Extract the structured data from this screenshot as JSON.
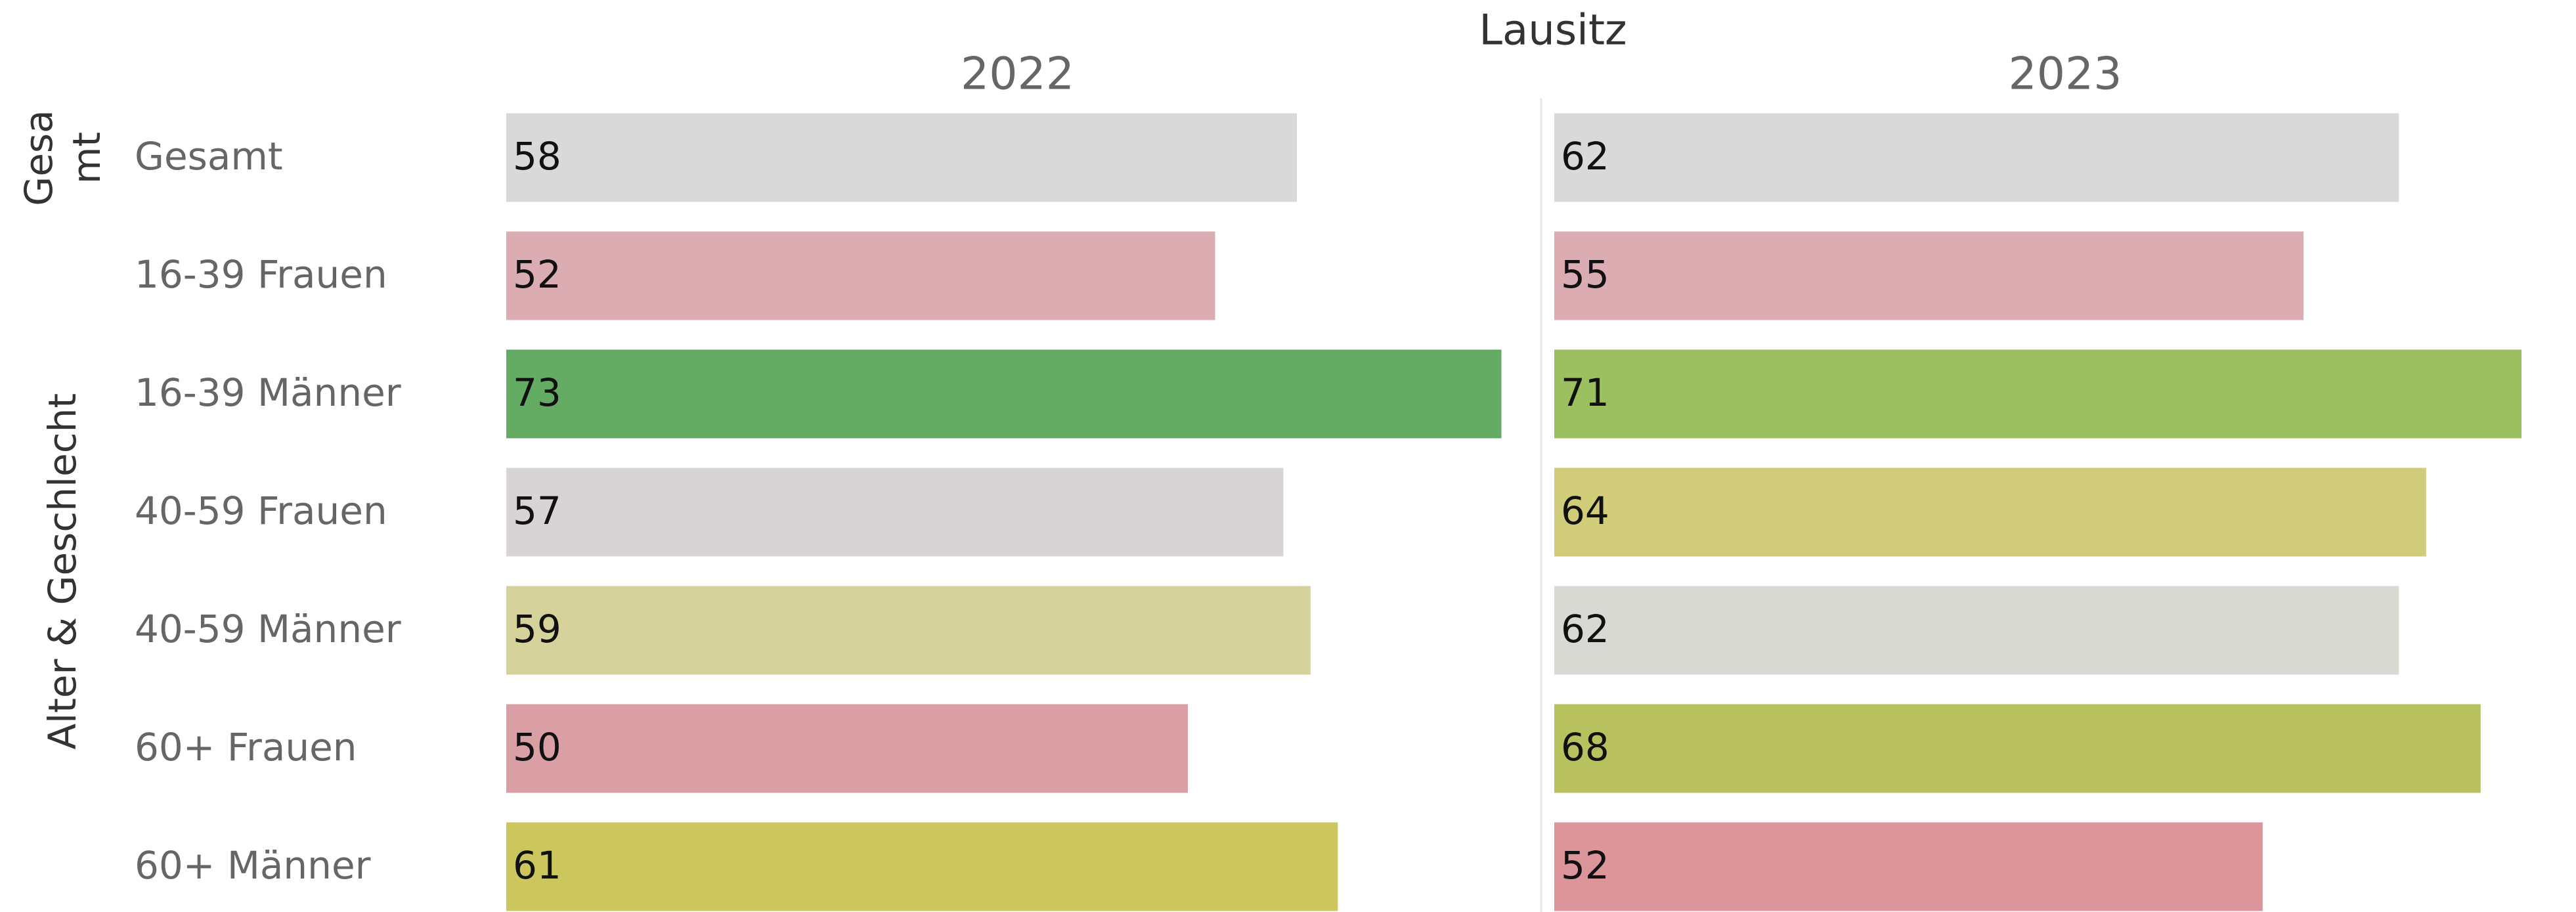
{
  "chart_data": {
    "type": "bar",
    "title": "Lausitz",
    "row_groups": [
      {
        "label": "Gesamt",
        "categories": [
          "Gesamt"
        ]
      },
      {
        "label": "Alter & Geschlecht",
        "categories": [
          "16-39 Frauen",
          "16-39 Männer",
          "40-59 Frauen",
          "40-59 Männer",
          "60+ Frauen",
          "60+ Männer"
        ]
      }
    ],
    "xlim": [
      0,
      75
    ],
    "series": [
      {
        "name": "2022",
        "values": [
          58,
          52,
          73,
          57,
          59,
          50,
          61
        ],
        "colors": [
          "#d9d9d9",
          "#dcacb3",
          "#64ab64",
          "#d8d4d5",
          "#d5d39b",
          "#da9ea5",
          "#cbc75e"
        ]
      },
      {
        "name": "2023",
        "values": [
          62,
          55,
          71,
          64,
          62,
          68,
          52
        ],
        "colors": [
          "#d9d9d9",
          "#dcacb3",
          "#9cbf5f",
          "#d1cc7a",
          "#d9d9d4",
          "#b7c25e",
          "#db959b"
        ]
      }
    ]
  }
}
